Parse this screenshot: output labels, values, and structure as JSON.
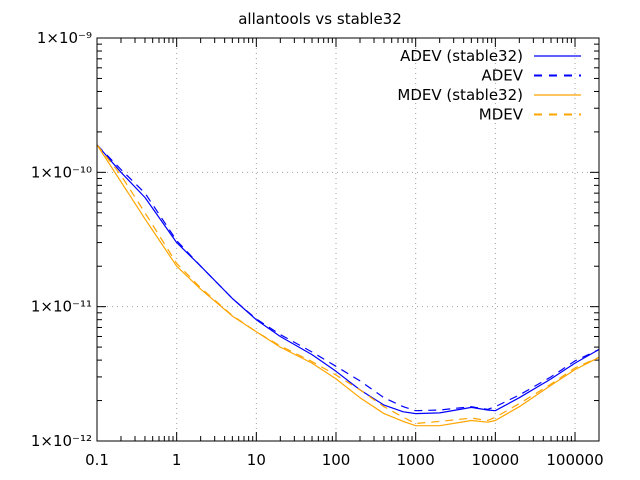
{
  "chart_data": {
    "type": "line",
    "title": "allantools vs stable32",
    "xlabel": "",
    "ylabel": "",
    "x_scale": "log",
    "y_scale": "log",
    "xlim": [
      0.1,
      200000
    ],
    "ylim": [
      1e-12,
      1e-09
    ],
    "grid": true,
    "legend_position": "top-right",
    "x_ticks": [
      {
        "value": 0.1,
        "label": "0.1"
      },
      {
        "value": 1,
        "label": "1"
      },
      {
        "value": 10,
        "label": "10"
      },
      {
        "value": 100,
        "label": "100"
      },
      {
        "value": 1000,
        "label": "1000"
      },
      {
        "value": 10000,
        "label": "10000"
      },
      {
        "value": 100000,
        "label": "100000"
      }
    ],
    "y_ticks": [
      {
        "value": 1e-12,
        "label": "1×10⁻¹²"
      },
      {
        "value": 1e-11,
        "label": "1×10⁻¹¹"
      },
      {
        "value": 1e-10,
        "label": "1×10⁻¹⁰"
      },
      {
        "value": 1e-09,
        "label": "1×10⁻⁹"
      }
    ],
    "series": [
      {
        "name": "ADEV (stable32)",
        "color": "#0000ff",
        "dash": "solid",
        "x": [
          0.1,
          0.2,
          0.4,
          1,
          2,
          5,
          10,
          20,
          50,
          100,
          200,
          400,
          700,
          1000,
          2000,
          5000,
          8000,
          10000,
          20000,
          50000,
          100000,
          200000
        ],
        "y": [
          1.6e-10,
          1e-10,
          6.5e-11,
          3e-11,
          2e-11,
          1.15e-11,
          8e-12,
          6e-12,
          4.4e-12,
          3.3e-12,
          2.4e-12,
          1.85e-12,
          1.65e-12,
          1.6e-12,
          1.62e-12,
          1.78e-12,
          1.7e-12,
          1.68e-12,
          2.1e-12,
          2.9e-12,
          3.8e-12,
          4.8e-12
        ]
      },
      {
        "name": "ADEV",
        "color": "#0000ff",
        "dash": "dashed",
        "x": [
          0.1,
          0.2,
          0.4,
          1,
          2,
          5,
          10,
          20,
          50,
          100,
          200,
          400,
          700,
          1000,
          2000,
          5000,
          8000,
          10000,
          20000,
          50000,
          100000,
          200000
        ],
        "y": [
          1.6e-10,
          1.05e-10,
          7e-11,
          3.1e-11,
          2e-11,
          1.15e-11,
          8.1e-12,
          6.2e-12,
          4.6e-12,
          3.6e-12,
          2.8e-12,
          2.1e-12,
          1.8e-12,
          1.68e-12,
          1.7e-12,
          1.8e-12,
          1.72e-12,
          1.8e-12,
          2.2e-12,
          3e-12,
          3.95e-12,
          4.8e-12
        ]
      },
      {
        "name": "MDEV (stable32)",
        "color": "#ffa500",
        "dash": "solid",
        "x": [
          0.1,
          0.2,
          0.4,
          1,
          2,
          5,
          10,
          20,
          50,
          100,
          200,
          400,
          700,
          1000,
          2000,
          5000,
          8000,
          10000,
          20000,
          50000,
          100000,
          200000
        ],
        "y": [
          1.6e-10,
          8.5e-11,
          4.5e-11,
          2e-11,
          1.35e-11,
          8.5e-12,
          6.5e-12,
          5e-12,
          3.8e-12,
          2.9e-12,
          2.1e-12,
          1.6e-12,
          1.4e-12,
          1.3e-12,
          1.3e-12,
          1.42e-12,
          1.38e-12,
          1.42e-12,
          1.8e-12,
          2.6e-12,
          3.4e-12,
          4.2e-12
        ]
      },
      {
        "name": "MDEV",
        "color": "#ffa500",
        "dash": "dashed",
        "x": [
          0.1,
          0.2,
          0.4,
          1,
          2,
          5,
          10,
          20,
          50,
          100,
          200,
          400,
          700,
          1000,
          2000,
          5000,
          8000,
          10000,
          20000,
          50000,
          100000,
          200000
        ],
        "y": [
          1.6e-10,
          9.5e-11,
          5e-11,
          2.1e-11,
          1.38e-11,
          8.6e-12,
          6.5e-12,
          5.1e-12,
          3.9e-12,
          3.1e-12,
          2.4e-12,
          1.8e-12,
          1.5e-12,
          1.35e-12,
          1.4e-12,
          1.48e-12,
          1.42e-12,
          1.5e-12,
          1.9e-12,
          2.65e-12,
          3.5e-12,
          4.2e-12
        ]
      }
    ]
  }
}
